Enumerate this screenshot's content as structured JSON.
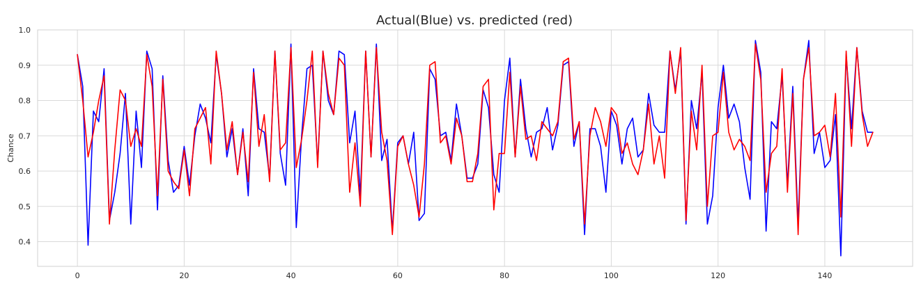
{
  "chart_data": {
    "type": "line",
    "title": "Actual(Blue) vs. predicted (red)",
    "xlabel": "",
    "ylabel": "Chance",
    "xlim": [
      -7.45,
      156.45
    ],
    "ylim": [
      0.3301,
      1.0
    ],
    "x_ticks": [
      0,
      20,
      40,
      60,
      80,
      100,
      120,
      140
    ],
    "y_ticks": [
      0.4,
      0.5,
      0.6,
      0.7,
      0.8,
      0.9,
      1.0
    ],
    "grid": true,
    "series": [
      {
        "color": "#0000ff",
        "values": [
          0.93,
          0.84,
          0.39,
          0.77,
          0.74,
          0.89,
          0.46,
          0.54,
          0.65,
          0.82,
          0.45,
          0.77,
          0.61,
          0.94,
          0.89,
          0.49,
          0.87,
          0.63,
          0.54,
          0.56,
          0.67,
          0.56,
          0.7,
          0.79,
          0.75,
          0.68,
          0.93,
          0.82,
          0.64,
          0.72,
          0.59,
          0.72,
          0.53,
          0.89,
          0.72,
          0.71,
          0.58,
          0.94,
          0.65,
          0.56,
          0.96,
          0.44,
          0.7,
          0.89,
          0.9,
          0.62,
          0.94,
          0.8,
          0.76,
          0.94,
          0.93,
          0.68,
          0.77,
          0.53,
          0.94,
          0.64,
          0.96,
          0.63,
          0.69,
          0.43,
          0.68,
          0.7,
          0.62,
          0.71,
          0.46,
          0.48,
          0.89,
          0.86,
          0.7,
          0.71,
          0.63,
          0.79,
          0.7,
          0.58,
          0.58,
          0.62,
          0.83,
          0.78,
          0.59,
          0.54,
          0.8,
          0.92,
          0.64,
          0.86,
          0.72,
          0.64,
          0.71,
          0.72,
          0.78,
          0.66,
          0.73,
          0.9,
          0.91,
          0.67,
          0.74,
          0.42,
          0.72,
          0.72,
          0.67,
          0.54,
          0.77,
          0.73,
          0.62,
          0.72,
          0.75,
          0.64,
          0.66,
          0.82,
          0.73,
          0.71,
          0.71,
          0.94,
          0.83,
          0.94,
          0.45,
          0.8,
          0.72,
          0.88,
          0.45,
          0.53,
          0.78,
          0.9,
          0.75,
          0.79,
          0.74,
          0.61,
          0.52,
          0.97,
          0.88,
          0.43,
          0.74,
          0.72,
          0.87,
          0.56,
          0.84,
          0.45,
          0.86,
          0.97,
          0.65,
          0.71,
          0.61,
          0.63,
          0.76,
          0.36,
          0.93,
          0.72,
          0.95,
          0.77,
          0.71,
          0.71
        ]
      },
      {
        "color": "#ff0000",
        "values": [
          0.93,
          0.8,
          0.64,
          0.71,
          0.8,
          0.87,
          0.45,
          0.66,
          0.83,
          0.8,
          0.67,
          0.72,
          0.67,
          0.93,
          0.84,
          0.53,
          0.86,
          0.6,
          0.57,
          0.55,
          0.66,
          0.53,
          0.72,
          0.75,
          0.78,
          0.62,
          0.94,
          0.82,
          0.66,
          0.74,
          0.59,
          0.71,
          0.57,
          0.88,
          0.67,
          0.76,
          0.57,
          0.94,
          0.66,
          0.68,
          0.95,
          0.61,
          0.69,
          0.8,
          0.94,
          0.61,
          0.94,
          0.82,
          0.76,
          0.92,
          0.9,
          0.54,
          0.68,
          0.5,
          0.94,
          0.64,
          0.95,
          0.71,
          0.63,
          0.42,
          0.67,
          0.7,
          0.62,
          0.56,
          0.47,
          0.62,
          0.9,
          0.91,
          0.68,
          0.7,
          0.62,
          0.75,
          0.7,
          0.57,
          0.57,
          0.65,
          0.84,
          0.86,
          0.49,
          0.65,
          0.65,
          0.88,
          0.64,
          0.84,
          0.69,
          0.7,
          0.63,
          0.74,
          0.72,
          0.7,
          0.74,
          0.91,
          0.92,
          0.69,
          0.74,
          0.45,
          0.7,
          0.78,
          0.74,
          0.67,
          0.78,
          0.76,
          0.65,
          0.68,
          0.62,
          0.59,
          0.66,
          0.79,
          0.62,
          0.7,
          0.58,
          0.94,
          0.82,
          0.95,
          0.46,
          0.77,
          0.66,
          0.9,
          0.5,
          0.7,
          0.71,
          0.88,
          0.71,
          0.66,
          0.69,
          0.67,
          0.63,
          0.96,
          0.86,
          0.54,
          0.65,
          0.67,
          0.89,
          0.54,
          0.82,
          0.42,
          0.86,
          0.95,
          0.7,
          0.71,
          0.73,
          0.64,
          0.82,
          0.47,
          0.94,
          0.67,
          0.95,
          0.76,
          0.67,
          0.71
        ]
      }
    ]
  }
}
